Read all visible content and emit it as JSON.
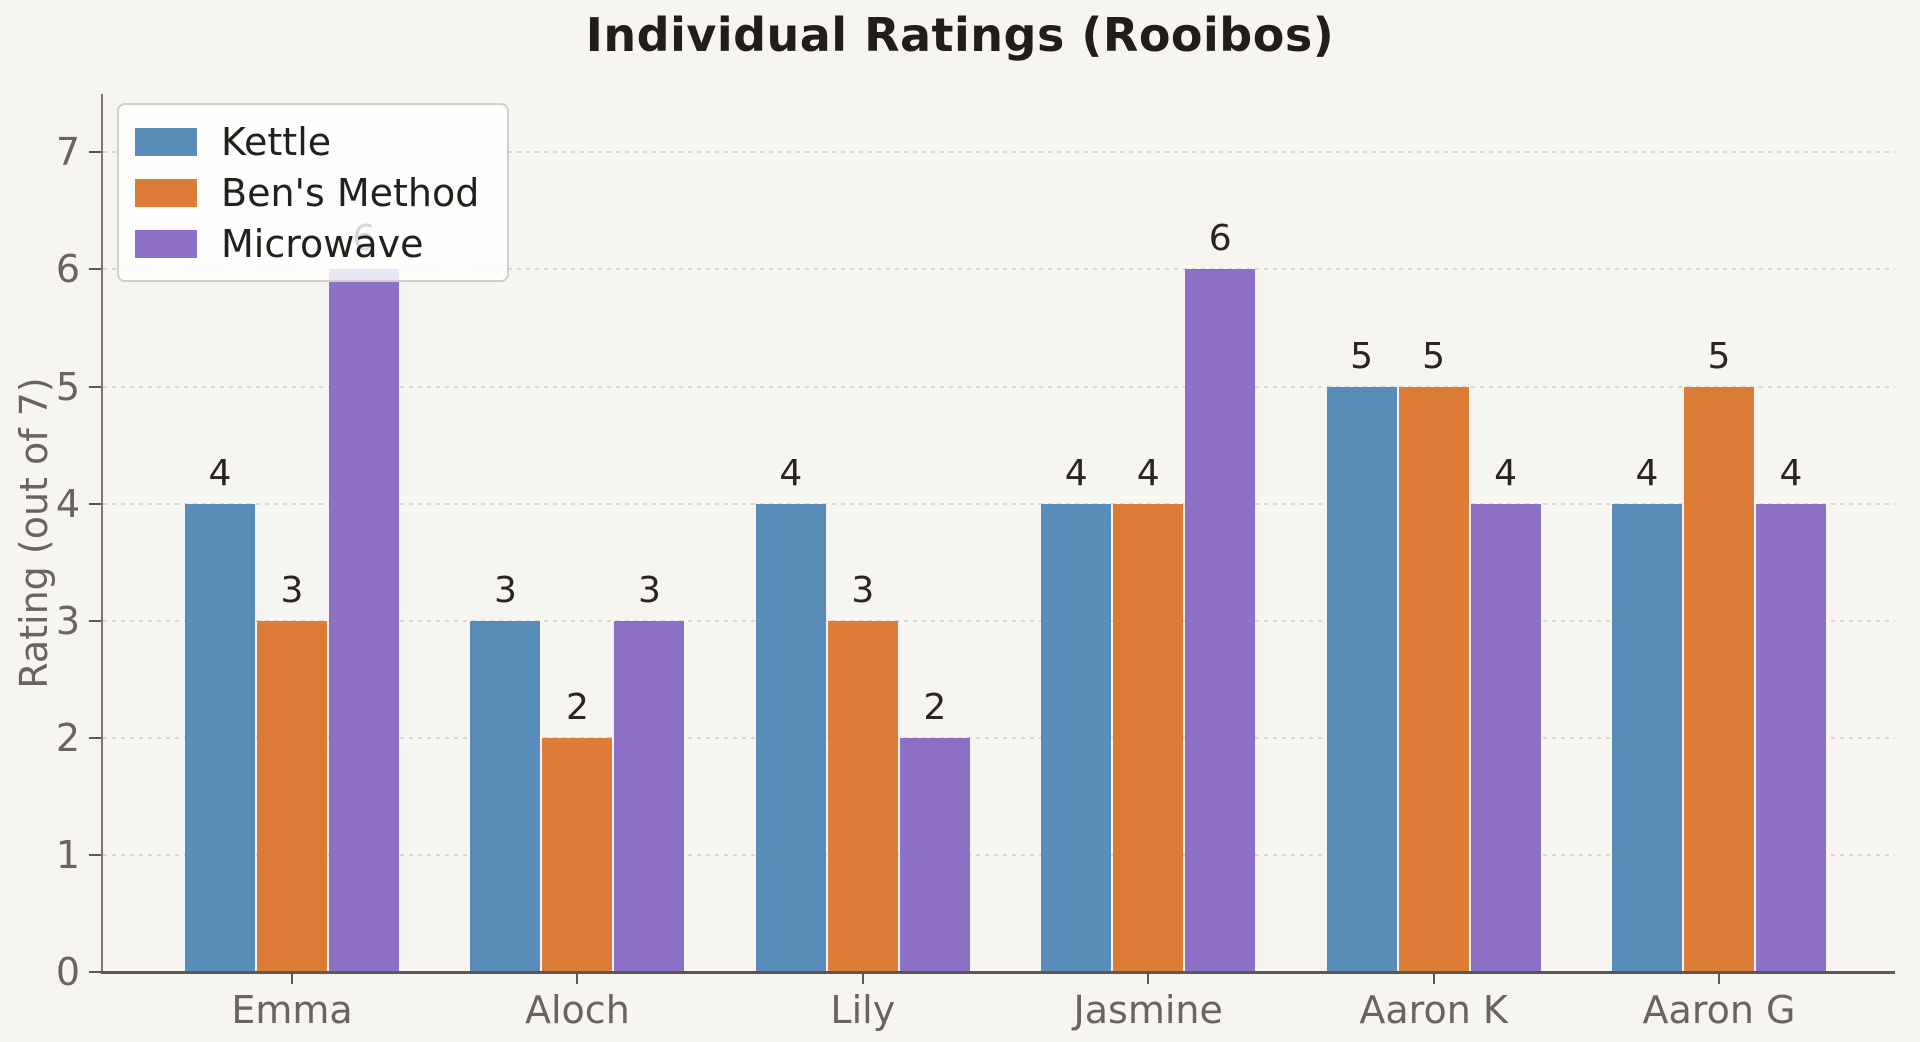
{
  "chart_data": {
    "type": "bar",
    "title": "Individual Ratings (Rooibos)",
    "xlabel": "",
    "ylabel": "Rating (out of 7)",
    "categories": [
      "Emma",
      "Aloch",
      "Lily",
      "Jasmine",
      "Aaron K",
      "Aaron G"
    ],
    "series": [
      {
        "name": "Kettle",
        "color": "#5a8cba",
        "values": [
          4,
          3,
          4,
          4,
          5,
          4
        ]
      },
      {
        "name": "Ben's Method",
        "color": "#dd7c36",
        "values": [
          3,
          2,
          3,
          4,
          5,
          5
        ]
      },
      {
        "name": "Microwave",
        "color": "#8b70c6",
        "values": [
          6,
          3,
          2,
          6,
          4,
          4
        ]
      }
    ],
    "yticks": [
      0,
      1,
      2,
      3,
      4,
      5,
      6,
      7
    ],
    "ylim": [
      0,
      7.5
    ],
    "grid": true,
    "grid_style": "dotted",
    "bar_value_labels": true,
    "legend_position": "upper-left",
    "colors": {
      "background": "#f7f5f1",
      "grid": "#d9d6d0",
      "axis": "#5c5751",
      "tick_text": "#6b645d",
      "value_text": "#2a2520",
      "title_text": "#221d18"
    }
  }
}
